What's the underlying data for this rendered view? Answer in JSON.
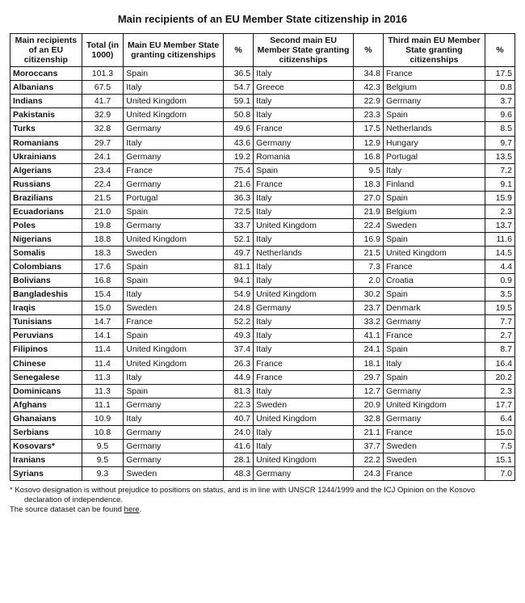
{
  "title": "Main recipients of an EU Member State citizenship in 2016",
  "columns": {
    "name": "Main recipients of an EU citizenship",
    "total": "Total (in 1000)",
    "main": "Main EU Member State granting citizenships",
    "pct1": "%",
    "second": "Second main EU Member State granting citizenships",
    "pct2": "%",
    "third": "Third main EU Member State granting citizenships",
    "pct3": "%"
  },
  "rows": [
    {
      "name": "Moroccans",
      "total": "101.3",
      "main": "Spain",
      "pct1": "36.5",
      "second": "Italy",
      "pct2": "34.8",
      "third": "France",
      "pct3": "17.5"
    },
    {
      "name": "Albanians",
      "total": "67.5",
      "main": "Italy",
      "pct1": "54.7",
      "second": "Greece",
      "pct2": "42.3",
      "third": "Belgium",
      "pct3": "0.8"
    },
    {
      "name": "Indians",
      "total": "41.7",
      "main": "United Kingdom",
      "pct1": "59.1",
      "second": "Italy",
      "pct2": "22.9",
      "third": "Germany",
      "pct3": "3.7"
    },
    {
      "name": "Pakistanis",
      "total": "32.9",
      "main": "United Kingdom",
      "pct1": "50.8",
      "second": "Italy",
      "pct2": "23.3",
      "third": "Spain",
      "pct3": "9.6"
    },
    {
      "name": "Turks",
      "total": "32.8",
      "main": "Germany",
      "pct1": "49.6",
      "second": "France",
      "pct2": "17.5",
      "third": "Netherlands",
      "pct3": "8.5"
    },
    {
      "name": "Romanians",
      "total": "29.7",
      "main": "Italy",
      "pct1": "43.6",
      "second": "Germany",
      "pct2": "12.9",
      "third": "Hungary",
      "pct3": "9.7"
    },
    {
      "name": "Ukrainians",
      "total": "24.1",
      "main": "Germany",
      "pct1": "19.2",
      "second": "Romania",
      "pct2": "16.8",
      "third": "Portugal",
      "pct3": "13.5"
    },
    {
      "name": "Algerians",
      "total": "23.4",
      "main": "France",
      "pct1": "75.4",
      "second": "Spain",
      "pct2": "9.5",
      "third": "Italy",
      "pct3": "7.2"
    },
    {
      "name": "Russians",
      "total": "22.4",
      "main": "Germany",
      "pct1": "21.6",
      "second": "France",
      "pct2": "18.3",
      "third": "Finland",
      "pct3": "9.1"
    },
    {
      "name": "Brazilians",
      "total": "21.5",
      "main": "Portugal",
      "pct1": "36.3",
      "second": "Italy",
      "pct2": "27.0",
      "third": "Spain",
      "pct3": "15.9"
    },
    {
      "name": "Ecuadorians",
      "total": "21.0",
      "main": "Spain",
      "pct1": "72.5",
      "second": "Italy",
      "pct2": "21.9",
      "third": "Belgium",
      "pct3": "2.3"
    },
    {
      "name": "Poles",
      "total": "19.8",
      "main": "Germany",
      "pct1": "33.7",
      "second": "United Kingdom",
      "pct2": "22.4",
      "third": "Sweden",
      "pct3": "13.7"
    },
    {
      "name": "Nigerians",
      "total": "18.8",
      "main": "United Kingdom",
      "pct1": "52.1",
      "second": "Italy",
      "pct2": "16.9",
      "third": "Spain",
      "pct3": "11.6"
    },
    {
      "name": "Somalis",
      "total": "18.3",
      "main": "Sweden",
      "pct1": "49.7",
      "second": "Netherlands",
      "pct2": "21.5",
      "third": "United Kingdom",
      "pct3": "14.5"
    },
    {
      "name": "Colombians",
      "total": "17.6",
      "main": "Spain",
      "pct1": "81.1",
      "second": "Italy",
      "pct2": "7.3",
      "third": "France",
      "pct3": "4.4"
    },
    {
      "name": "Bolivians",
      "total": "16.8",
      "main": "Spain",
      "pct1": "94.1",
      "second": "Italy",
      "pct2": "2.0",
      "third": "Croatia",
      "pct3": "0.9"
    },
    {
      "name": "Bangladeshis",
      "total": "15.4",
      "main": "Italy",
      "pct1": "54.9",
      "second": "United Kingdom",
      "pct2": "30.2",
      "third": "Spain",
      "pct3": "3.5"
    },
    {
      "name": "Iraqis",
      "total": "15.0",
      "main": "Sweden",
      "pct1": "24.8",
      "second": "Germany",
      "pct2": "23.7",
      "third": "Denmark",
      "pct3": "19.5"
    },
    {
      "name": "Tunisians",
      "total": "14.7",
      "main": "France",
      "pct1": "52.2",
      "second": "Italy",
      "pct2": "33.2",
      "third": "Germany",
      "pct3": "7.7"
    },
    {
      "name": "Peruvians",
      "total": "14.1",
      "main": "Spain",
      "pct1": "49.3",
      "second": "Italy",
      "pct2": "41.1",
      "third": "France",
      "pct3": "2.7"
    },
    {
      "name": "Filipinos",
      "total": "11.4",
      "main": "United Kingdom",
      "pct1": "37.4",
      "second": "Italy",
      "pct2": "24.1",
      "third": "Spain",
      "pct3": "8.7"
    },
    {
      "name": "Chinese",
      "total": "11.4",
      "main": "United Kingdom",
      "pct1": "26.3",
      "second": "France",
      "pct2": "18.1",
      "third": "Italy",
      "pct3": "16.4"
    },
    {
      "name": "Senegalese",
      "total": "11.3",
      "main": "Italy",
      "pct1": "44.9",
      "second": "France",
      "pct2": "29.7",
      "third": "Spain",
      "pct3": "20.2"
    },
    {
      "name": "Dominicans",
      "total": "11.3",
      "main": "Spain",
      "pct1": "81.3",
      "second": "Italy",
      "pct2": "12.7",
      "third": "Germany",
      "pct3": "2.3"
    },
    {
      "name": "Afghans",
      "total": "11.1",
      "main": "Germany",
      "pct1": "22.3",
      "second": "Sweden",
      "pct2": "20.9",
      "third": "United Kingdom",
      "pct3": "17.7"
    },
    {
      "name": "Ghanaians",
      "total": "10.9",
      "main": "Italy",
      "pct1": "40.7",
      "second": "United Kingdom",
      "pct2": "32.8",
      "third": "Germany",
      "pct3": "6.4"
    },
    {
      "name": "Serbians",
      "total": "10.8",
      "main": "Germany",
      "pct1": "24.0",
      "second": "Italy",
      "pct2": "21.1",
      "third": "France",
      "pct3": "15.0"
    },
    {
      "name": "Kosovars*",
      "total": "9.5",
      "main": "Germany",
      "pct1": "41.6",
      "second": "Italy",
      "pct2": "37.7",
      "third": "Sweden",
      "pct3": "7.5"
    },
    {
      "name": "Iranians",
      "total": "9.5",
      "main": "Germany",
      "pct1": "28.1",
      "second": "United Kingdom",
      "pct2": "22.2",
      "third": "Sweden",
      "pct3": "15.1"
    },
    {
      "name": "Syrians",
      "total": "9.3",
      "main": "Sweden",
      "pct1": "48.3",
      "second": "Germany",
      "pct2": "24.3",
      "third": "France",
      "pct3": "7.0"
    }
  ],
  "footnotes": {
    "line1a": "* Kosovo designation is without prejudice to positions on status, and is in line with UNSCR 1244/1999 and the ICJ Opinion on the Kosovo",
    "line1b": "declaration of independence.",
    "line2": "The source dataset can be found ",
    "here": "here",
    "dot": "."
  }
}
